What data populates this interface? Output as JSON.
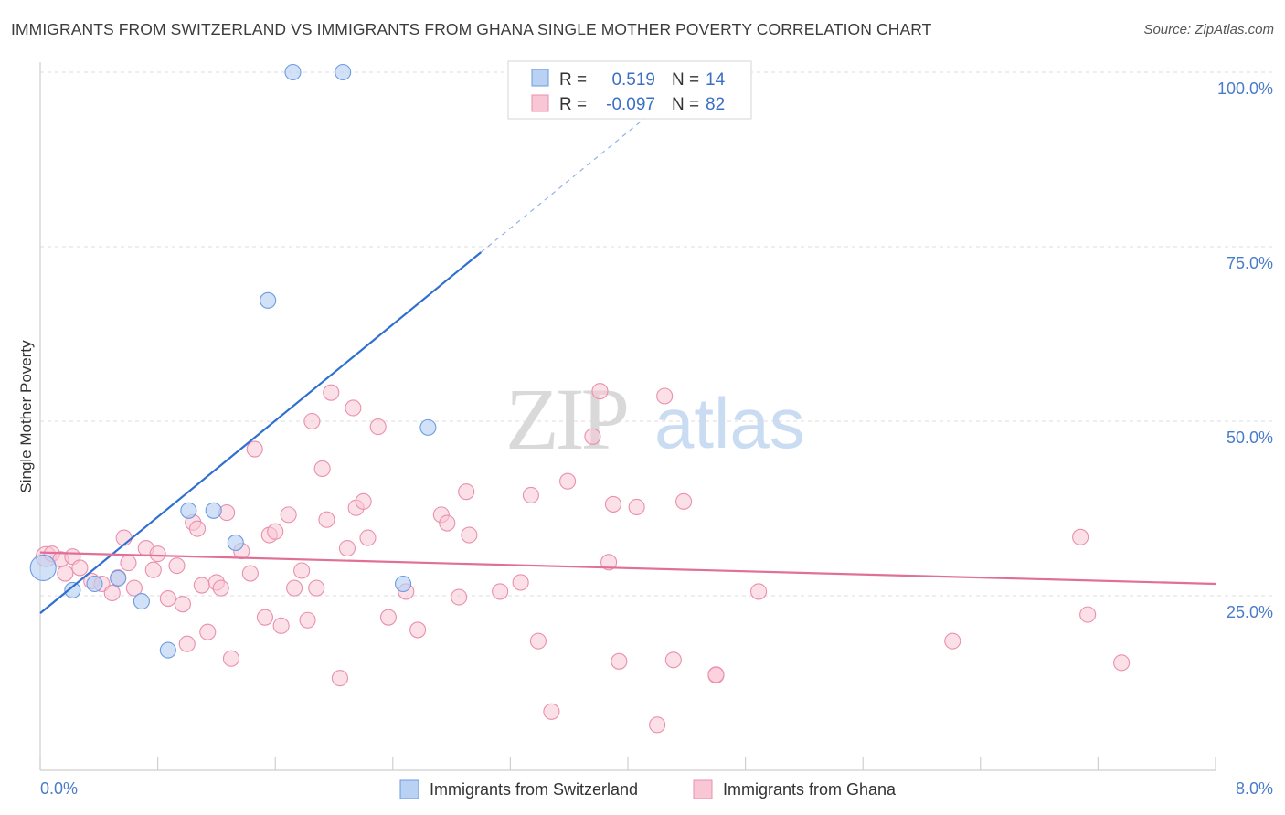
{
  "title": "IMMIGRANTS FROM SWITZERLAND VS IMMIGRANTS FROM GHANA SINGLE MOTHER POVERTY CORRELATION CHART",
  "source": "Source: ZipAtlas.com",
  "watermark": {
    "zip": "ZIP",
    "atlas": "atlas"
  },
  "legend": {
    "rows": [
      {
        "r_label": "R =",
        "r_value": "0.519",
        "n_label": "N =",
        "n_value": "14",
        "color": "#b9d1f3",
        "stroke": "#6d9be0"
      },
      {
        "r_label": "R =",
        "r_value": "-0.097",
        "n_label": "N =",
        "n_value": "82",
        "color": "#f9c6d6",
        "stroke": "#ea8fae"
      }
    ]
  },
  "bottom_legend": [
    "Immigrants from Switzerland",
    "Immigrants from Ghana"
  ],
  "chart_data": {
    "type": "scatter",
    "title": "IMMIGRANTS FROM SWITZERLAND VS IMMIGRANTS FROM GHANA SINGLE MOTHER POVERTY CORRELATION CHART",
    "xlabel": "",
    "ylabel": "Single Mother Poverty",
    "xlim": [
      0,
      8
    ],
    "ylim": [
      0,
      105
    ],
    "x_tick_labels": [
      "0.0%",
      "8.0%"
    ],
    "y_ticks": [
      25,
      50,
      75,
      100
    ],
    "y_tick_labels": [
      "25.0%",
      "50.0%",
      "75.0%",
      "100.0%"
    ],
    "grid": true,
    "legend_position": "top-center",
    "colors": {
      "switzerland": "#6d9be0",
      "ghana": "#ea8fae",
      "switzerland_line": "#2f6fd1",
      "ghana_line": "#e07098"
    },
    "series": [
      {
        "name": "Immigrants from Switzerland",
        "points": [
          [
            0.02,
            29.0
          ],
          [
            0.22,
            25.8
          ],
          [
            0.53,
            27.5
          ],
          [
            0.69,
            24.2
          ],
          [
            0.87,
            17.2
          ],
          [
            1.01,
            37.2
          ],
          [
            1.18,
            37.2
          ],
          [
            1.33,
            32.6
          ],
          [
            1.55,
            67.3
          ],
          [
            1.72,
            100.0
          ],
          [
            2.06,
            100.0
          ],
          [
            2.47,
            26.7
          ],
          [
            2.64,
            49.1
          ],
          [
            0.37,
            26.7
          ]
        ],
        "trend": {
          "x": [
            0.0,
            3.0
          ],
          "y": [
            22.5,
            74.2
          ],
          "dashed_extension": {
            "x": [
              3.0,
              4.3
            ],
            "y": [
              74.2,
              96.6
            ]
          }
        }
      },
      {
        "name": "Immigrants from Ghana",
        "points": [
          [
            0.04,
            30.6
          ],
          [
            0.08,
            31.0
          ],
          [
            0.14,
            30.2
          ],
          [
            0.17,
            28.2
          ],
          [
            0.22,
            30.6
          ],
          [
            0.27,
            29.0
          ],
          [
            0.35,
            27.1
          ],
          [
            0.42,
            26.7
          ],
          [
            0.49,
            25.4
          ],
          [
            0.53,
            27.6
          ],
          [
            0.57,
            33.3
          ],
          [
            0.6,
            29.7
          ],
          [
            0.64,
            26.1
          ],
          [
            0.72,
            31.8
          ],
          [
            0.77,
            28.7
          ],
          [
            0.8,
            31.0
          ],
          [
            0.87,
            24.6
          ],
          [
            0.93,
            29.3
          ],
          [
            0.97,
            23.8
          ],
          [
            1.0,
            18.1
          ],
          [
            1.04,
            35.5
          ],
          [
            1.07,
            34.6
          ],
          [
            1.1,
            26.5
          ],
          [
            1.14,
            19.8
          ],
          [
            1.2,
            26.9
          ],
          [
            1.23,
            26.1
          ],
          [
            1.27,
            36.9
          ],
          [
            1.3,
            16.0
          ],
          [
            1.37,
            31.4
          ],
          [
            1.43,
            28.2
          ],
          [
            1.46,
            46.0
          ],
          [
            1.53,
            21.9
          ],
          [
            1.56,
            33.7
          ],
          [
            1.6,
            34.2
          ],
          [
            1.64,
            20.7
          ],
          [
            1.69,
            36.6
          ],
          [
            1.73,
            26.1
          ],
          [
            1.78,
            28.6
          ],
          [
            1.82,
            21.5
          ],
          [
            1.85,
            50.0
          ],
          [
            1.88,
            26.1
          ],
          [
            1.92,
            43.2
          ],
          [
            1.95,
            35.9
          ],
          [
            1.98,
            54.1
          ],
          [
            2.04,
            13.2
          ],
          [
            2.09,
            31.8
          ],
          [
            2.13,
            51.9
          ],
          [
            2.15,
            37.6
          ],
          [
            2.2,
            38.5
          ],
          [
            2.23,
            33.3
          ],
          [
            2.3,
            49.2
          ],
          [
            2.37,
            21.9
          ],
          [
            2.49,
            25.6
          ],
          [
            2.57,
            20.1
          ],
          [
            2.73,
            36.6
          ],
          [
            2.77,
            35.4
          ],
          [
            2.85,
            24.8
          ],
          [
            2.9,
            39.9
          ],
          [
            2.92,
            33.7
          ],
          [
            3.13,
            25.6
          ],
          [
            3.27,
            26.9
          ],
          [
            3.34,
            39.4
          ],
          [
            3.39,
            18.5
          ],
          [
            3.48,
            8.4
          ],
          [
            3.59,
            41.4
          ],
          [
            3.76,
            47.8
          ],
          [
            3.81,
            54.3
          ],
          [
            3.87,
            29.8
          ],
          [
            3.9,
            38.1
          ],
          [
            3.94,
            15.6
          ],
          [
            4.06,
            37.7
          ],
          [
            4.2,
            6.5
          ],
          [
            4.25,
            53.6
          ],
          [
            4.31,
            15.8
          ],
          [
            4.38,
            38.5
          ],
          [
            4.6,
            13.6
          ],
          [
            4.6,
            13.7
          ],
          [
            4.89,
            25.6
          ],
          [
            6.21,
            18.5
          ],
          [
            7.08,
            33.4
          ],
          [
            7.13,
            22.3
          ],
          [
            7.36,
            15.4
          ]
        ],
        "trend": {
          "x": [
            0.0,
            8.0
          ],
          "y": [
            31.2,
            26.7
          ]
        }
      }
    ]
  }
}
